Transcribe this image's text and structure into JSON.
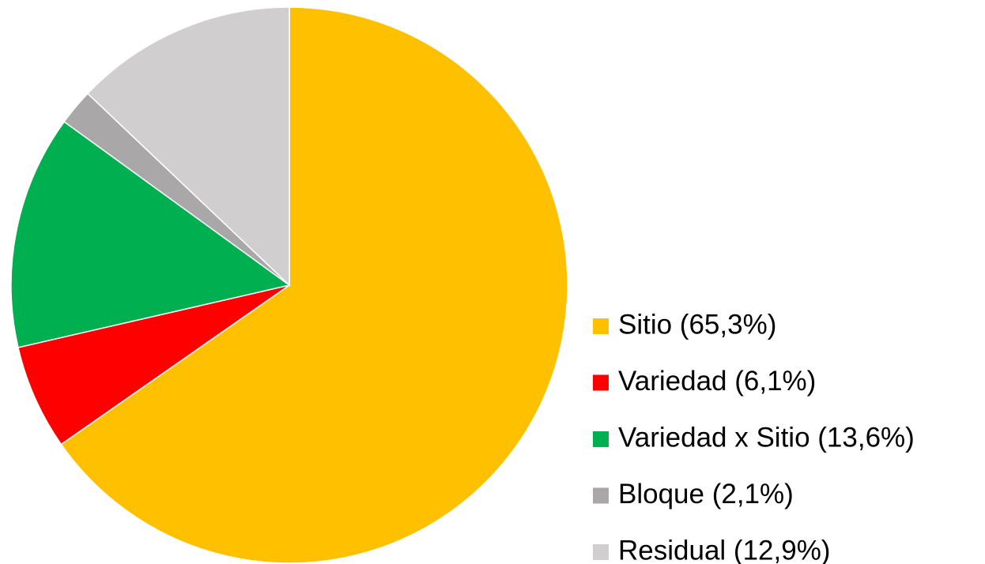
{
  "chart_data": {
    "type": "pie",
    "categories": [
      "Sitio (65,3%)",
      "Variedad (6,1%)",
      "Variedad x Sitio (13,6%)",
      "Bloque (2,1%)",
      "Residual (12,9%)"
    ],
    "values": [
      65.3,
      6.1,
      13.6,
      2.1,
      12.9
    ],
    "colors": [
      "#ffc000",
      "#ff0000",
      "#00b050",
      "#aaa7a8",
      "#d0cecf"
    ],
    "legend": "right"
  }
}
